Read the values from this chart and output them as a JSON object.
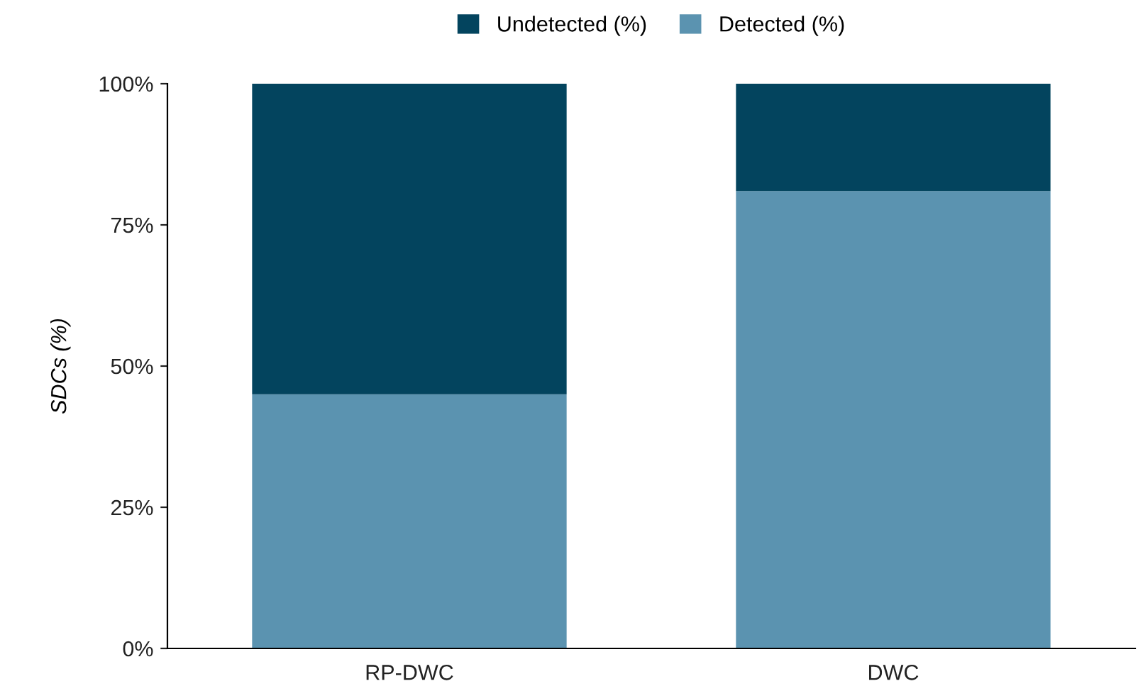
{
  "chart_data": {
    "type": "bar",
    "stacked": true,
    "ylabel": "SDCs (%)",
    "categories": [
      "RP-DWC",
      "DWC"
    ],
    "series": [
      {
        "name": "Detected (%)",
        "color": "#5b93b0",
        "values": [
          45,
          81
        ]
      },
      {
        "name": "Undetected (%)",
        "color": "#03445e",
        "values": [
          55,
          19
        ]
      }
    ],
    "ylim": [
      0,
      100
    ],
    "yticks": [
      {
        "value": 0,
        "label": "0%"
      },
      {
        "value": 25,
        "label": "25%"
      },
      {
        "value": 50,
        "label": "50%"
      },
      {
        "value": 75,
        "label": "75%"
      },
      {
        "value": 100,
        "label": "100%"
      }
    ],
    "grid": false,
    "legend": "top"
  }
}
